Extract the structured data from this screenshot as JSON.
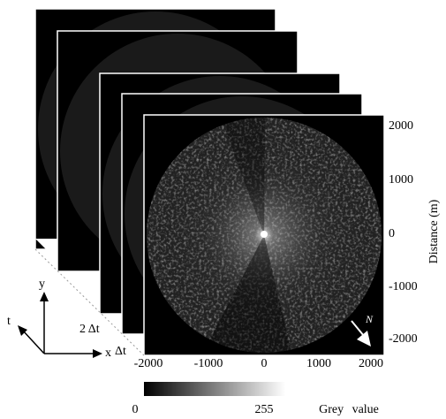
{
  "figure": {
    "axis_labels": {
      "x": "x",
      "y": "y",
      "t": "t"
    },
    "time_labels": [
      "2 Δt",
      "Δt"
    ],
    "y_axis": {
      "label": "Distance (m)",
      "ticks": [
        "2000",
        "1000",
        "0",
        "-1000",
        "-2000"
      ]
    },
    "x_axis": {
      "ticks": [
        "-2000",
        "-1000",
        "0",
        "1000",
        "2000"
      ]
    },
    "north": "N",
    "colorbar": {
      "min": "0",
      "max": "255",
      "label": "Grey value"
    }
  }
}
